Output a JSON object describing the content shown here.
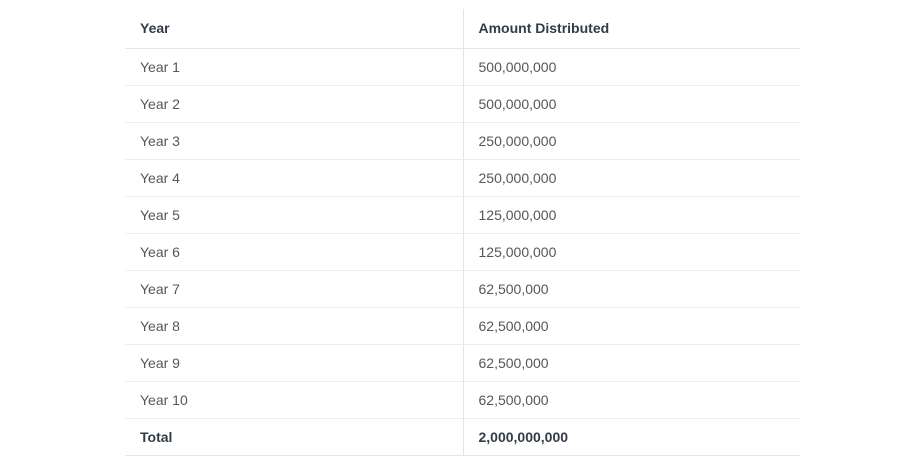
{
  "table": {
    "columns": [
      "Year",
      "Amount Distributed"
    ],
    "rows": [
      [
        "Year 1",
        "500,000,000"
      ],
      [
        "Year 2",
        "500,000,000"
      ],
      [
        "Year 3",
        "250,000,000"
      ],
      [
        "Year 4",
        "250,000,000"
      ],
      [
        "Year 5",
        "125,000,000"
      ],
      [
        "Year 6",
        "125,000,000"
      ],
      [
        "Year 7",
        "62,500,000"
      ],
      [
        "Year 8",
        "62,500,000"
      ],
      [
        "Year 9",
        "62,500,000"
      ],
      [
        "Year 10",
        "62,500,000"
      ]
    ],
    "total": {
      "label": "Total",
      "value": "2,000,000,000"
    }
  },
  "chart_data": {
    "type": "table",
    "title": "",
    "columns": [
      "Year",
      "Amount Distributed"
    ],
    "categories": [
      "Year 1",
      "Year 2",
      "Year 3",
      "Year 4",
      "Year 5",
      "Year 6",
      "Year 7",
      "Year 8",
      "Year 9",
      "Year 10"
    ],
    "values": [
      500000000,
      500000000,
      250000000,
      250000000,
      125000000,
      125000000,
      62500000,
      62500000,
      62500000,
      62500000
    ],
    "total": 2000000000
  },
  "colors": {
    "header_text": "#323c48",
    "body_text": "#53575b",
    "row_border": "#ececec",
    "column_divider": "#e4e4e4",
    "background": "#ffffff"
  }
}
